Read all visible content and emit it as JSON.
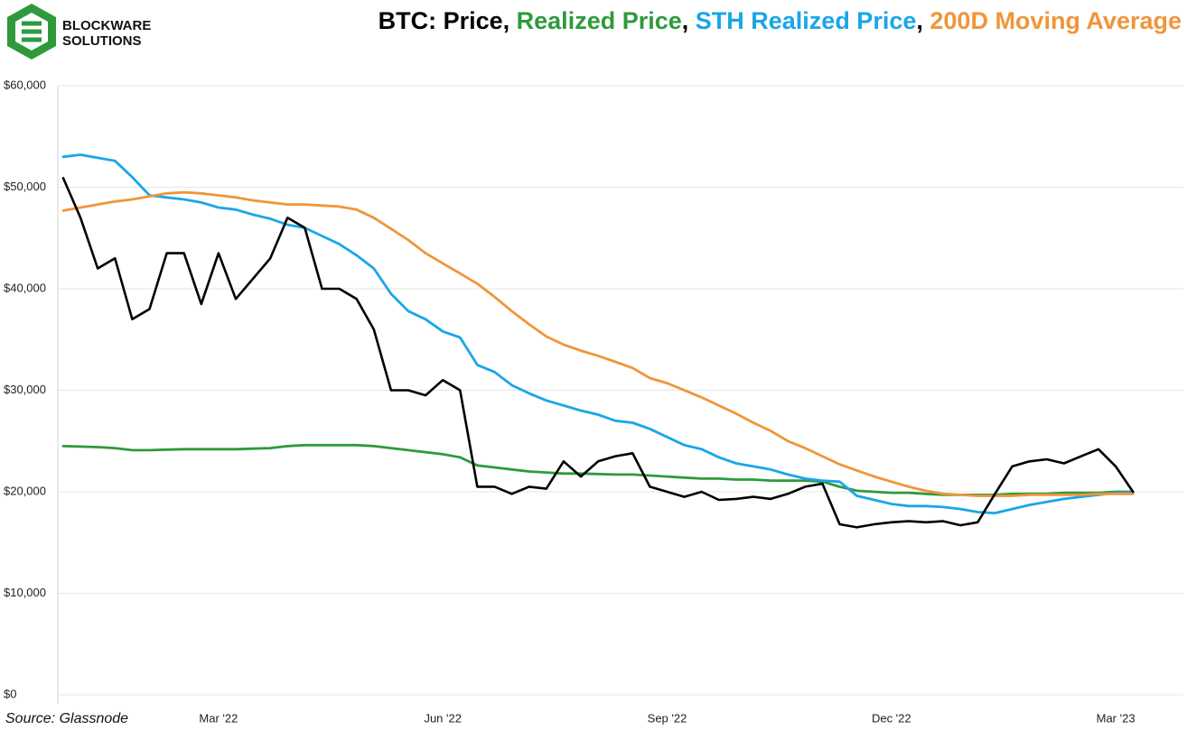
{
  "chart_data": {
    "type": "line",
    "title": "BTC: Price, Realized Price, STH Realized Price, 200D Moving Average",
    "logo": [
      "BLOCKWARE",
      "SOLUTIONS"
    ],
    "source": "Source: Glassnode",
    "categories": [
      null,
      null,
      null,
      null,
      null,
      null,
      null,
      null,
      null,
      "Mar '22",
      null,
      null,
      null,
      null,
      null,
      null,
      null,
      null,
      null,
      null,
      null,
      null,
      "Jun '22",
      null,
      null,
      null,
      null,
      null,
      null,
      null,
      null,
      null,
      null,
      null,
      null,
      "Sep '22",
      null,
      null,
      null,
      null,
      null,
      null,
      null,
      null,
      null,
      null,
      null,
      null,
      "Dec '22",
      null,
      null,
      null,
      null,
      null,
      null,
      null,
      null,
      null,
      null,
      null,
      null,
      "Mar '23",
      null
    ],
    "ylim": [
      0,
      60000
    ],
    "yticks": [
      {
        "value": 0,
        "label": "$0"
      },
      {
        "value": 10000,
        "label": "$10,000"
      },
      {
        "value": 20000,
        "label": "$20,000"
      },
      {
        "value": 30000,
        "label": "$30,000"
      },
      {
        "value": 40000,
        "label": "$40,000"
      },
      {
        "value": 50000,
        "label": "$50,000"
      },
      {
        "value": 60000,
        "label": "$60,000"
      }
    ],
    "grid": true,
    "series": [
      {
        "name": "Price",
        "color": "#000000",
        "values": [
          50900,
          47000,
          42000,
          43000,
          37000,
          38000,
          43500,
          43500,
          38500,
          43500,
          39000,
          41000,
          43000,
          47000,
          46000,
          40000,
          40000,
          39000,
          36000,
          30000,
          30000,
          29500,
          31000,
          30000,
          20500,
          20500,
          19800,
          20500,
          20300,
          23000,
          21500,
          23000,
          23500,
          23800,
          20500,
          20000,
          19500,
          20000,
          19200,
          19300,
          19500,
          19300,
          19800,
          20500,
          20800,
          16800,
          16500,
          16800,
          17000,
          17100,
          17000,
          17100,
          16700,
          17000,
          19800,
          22500,
          23000,
          23200,
          22800,
          23500,
          24200,
          22500,
          20000
        ]
      },
      {
        "name": "Realized Price",
        "color": "#2e9a3c",
        "values": [
          24500,
          24450,
          24400,
          24300,
          24100,
          24100,
          24150,
          24200,
          24200,
          24200,
          24200,
          24250,
          24300,
          24500,
          24600,
          24600,
          24600,
          24600,
          24500,
          24300,
          24100,
          23900,
          23700,
          23400,
          22600,
          22400,
          22200,
          22000,
          21900,
          21800,
          21800,
          21750,
          21700,
          21700,
          21600,
          21500,
          21400,
          21300,
          21300,
          21200,
          21200,
          21100,
          21100,
          21100,
          21000,
          20500,
          20100,
          20000,
          19900,
          19900,
          19800,
          19700,
          19700,
          19700,
          19700,
          19800,
          19800,
          19800,
          19900,
          19900,
          19900,
          20000,
          20000
        ]
      },
      {
        "name": "STH Realized Price",
        "color": "#1aa6e8",
        "values": [
          53000,
          53200,
          52900,
          52600,
          51000,
          49200,
          49000,
          48800,
          48500,
          48000,
          47800,
          47300,
          46900,
          46300,
          46000,
          45200,
          44400,
          43300,
          42000,
          39500,
          37800,
          37000,
          35800,
          35200,
          32500,
          31800,
          30500,
          29700,
          29000,
          28500,
          28000,
          27600,
          27000,
          26800,
          26200,
          25400,
          24600,
          24200,
          23400,
          22800,
          22500,
          22200,
          21700,
          21300,
          21100,
          21000,
          19600,
          19200,
          18800,
          18600,
          18600,
          18500,
          18300,
          18000,
          17900,
          18300,
          18700,
          19000,
          19300,
          19500,
          19700,
          19900,
          19900
        ]
      },
      {
        "name": "200D Moving Average",
        "color": "#f0953a",
        "values": [
          47700,
          48000,
          48300,
          48600,
          48800,
          49100,
          49400,
          49500,
          49400,
          49200,
          49000,
          48700,
          48500,
          48300,
          48300,
          48200,
          48100,
          47800,
          47000,
          45900,
          44800,
          43500,
          42500,
          41500,
          40500,
          39200,
          37800,
          36500,
          35300,
          34500,
          33900,
          33400,
          32800,
          32200,
          31200,
          30700,
          30000,
          29300,
          28500,
          27700,
          26800,
          26000,
          25000,
          24300,
          23500,
          22700,
          22100,
          21500,
          21000,
          20500,
          20100,
          19800,
          19700,
          19600,
          19600,
          19600,
          19700,
          19700,
          19700,
          19700,
          19800,
          19800,
          19800
        ]
      }
    ]
  }
}
